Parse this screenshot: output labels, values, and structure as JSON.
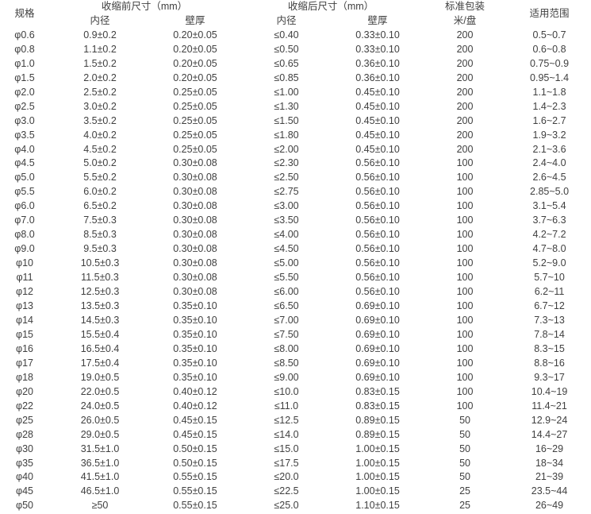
{
  "chart_data": {
    "type": "table",
    "header": {
      "spec": "规格",
      "pre_shrink_group": "收缩前尺寸（mm）",
      "post_shrink_group": "收缩后尺寸（mm）",
      "packaging_line1": "标准包装",
      "packaging_line2": "米/盘",
      "range": "适用范围",
      "inner_diameter": "内径",
      "wall_thickness": "壁厚"
    },
    "columns": [
      "规格",
      "收缩前尺寸内径",
      "收缩前尺寸壁厚",
      "收缩后尺寸内径",
      "收缩后尺寸壁厚",
      "标准包装米/盘",
      "适用范围"
    ],
    "rows": [
      [
        "φ0.6",
        "0.9±0.2",
        "0.20±0.05",
        "≤0.40",
        "0.33±0.10",
        "200",
        "0.5~0.7"
      ],
      [
        "φ0.8",
        "1.1±0.2",
        "0.20±0.05",
        "≤0.50",
        "0.33±0.10",
        "200",
        "0.6~0.8"
      ],
      [
        "φ1.0",
        "1.5±0.2",
        "0.20±0.05",
        "≤0.65",
        "0.36±0.10",
        "200",
        "0.75~0.9"
      ],
      [
        "φ1.5",
        "2.0±0.2",
        "0.20±0.05",
        "≤0.85",
        "0.36±0.10",
        "200",
        "0.95~1.4"
      ],
      [
        "φ2.0",
        "2.5±0.2",
        "0.25±0.05",
        "≤1.00",
        "0.45±0.10",
        "200",
        "1.1~1.8"
      ],
      [
        "φ2.5",
        "3.0±0.2",
        "0.25±0.05",
        "≤1.30",
        "0.45±0.10",
        "200",
        "1.4~2.3"
      ],
      [
        "φ3.0",
        "3.5±0.2",
        "0.25±0.05",
        "≤1.50",
        "0.45±0.10",
        "200",
        "1.6~2.7"
      ],
      [
        "φ3.5",
        "4.0±0.2",
        "0.25±0.05",
        "≤1.80",
        "0.45±0.10",
        "200",
        "1.9~3.2"
      ],
      [
        "φ4.0",
        "4.5±0.2",
        "0.25±0.05",
        "≤2.00",
        "0.45±0.10",
        "200",
        "2.1~3.6"
      ],
      [
        "φ4.5",
        "5.0±0.2",
        "0.30±0.08",
        "≤2.30",
        "0.56±0.10",
        "100",
        "2.4~4.0"
      ],
      [
        "φ5.0",
        "5.5±0.2",
        "0.30±0.08",
        "≤2.50",
        "0.56±0.10",
        "100",
        "2.6~4.5"
      ],
      [
        "φ5.5",
        "6.0±0.2",
        "0.30±0.08",
        "≤2.75",
        "0.56±0.10",
        "100",
        "2.85~5.0"
      ],
      [
        "φ6.0",
        "6.5±0.2",
        "0.30±0.08",
        "≤3.00",
        "0.56±0.10",
        "100",
        "3.1~5.4"
      ],
      [
        "φ7.0",
        "7.5±0.3",
        "0.30±0.08",
        "≤3.50",
        "0.56±0.10",
        "100",
        "3.7~6.3"
      ],
      [
        "φ8.0",
        "8.5±0.3",
        "0.30±0.08",
        "≤4.00",
        "0.56±0.10",
        "100",
        "4.2~7.2"
      ],
      [
        "φ9.0",
        "9.5±0.3",
        "0.30±0.08",
        "≤4.50",
        "0.56±0.10",
        "100",
        "4.7~8.0"
      ],
      [
        "φ10",
        "10.5±0.3",
        "0.30±0.08",
        "≤5.00",
        "0.56±0.10",
        "100",
        "5.2~9.0"
      ],
      [
        "φ11",
        "11.5±0.3",
        "0.30±0.08",
        "≤5.50",
        "0.56±0.10",
        "100",
        "5.7~10"
      ],
      [
        "φ12",
        "12.5±0.3",
        "0.30±0.08",
        "≤6.00",
        "0.56±0.10",
        "100",
        "6.2~11"
      ],
      [
        "φ13",
        "13.5±0.3",
        "0.35±0.10",
        "≤6.50",
        "0.69±0.10",
        "100",
        "6.7~12"
      ],
      [
        "φ14",
        "14.5±0.3",
        "0.35±0.10",
        "≤7.00",
        "0.69±0.10",
        "100",
        "7.3~13"
      ],
      [
        "φ15",
        "15.5±0.4",
        "0.35±0.10",
        "≤7.50",
        "0.69±0.10",
        "100",
        "7.8~14"
      ],
      [
        "φ16",
        "16.5±0.4",
        "0.35±0.10",
        "≤8.00",
        "0.69±0.10",
        "100",
        "8.3~15"
      ],
      [
        "φ17",
        "17.5±0.4",
        "0.35±0.10",
        "≤8.50",
        "0.69±0.10",
        "100",
        "8.8~16"
      ],
      [
        "φ18",
        "19.0±0.5",
        "0.35±0.10",
        "≤9.00",
        "0.69±0.10",
        "100",
        "9.3~17"
      ],
      [
        "φ20",
        "22.0±0.5",
        "0.40±0.12",
        "≤10.0",
        "0.83±0.15",
        "100",
        "10.4~19"
      ],
      [
        "φ22",
        "24.0±0.5",
        "0.40±0.12",
        "≤11.0",
        "0.83±0.15",
        "100",
        "11.4~21"
      ],
      [
        "φ25",
        "26.0±0.5",
        "0.45±0.15",
        "≤12.5",
        "0.89±0.15",
        "50",
        "12.9~24"
      ],
      [
        "φ28",
        "29.0±0.5",
        "0.45±0.15",
        "≤14.0",
        "0.89±0.15",
        "50",
        "14.4~27"
      ],
      [
        "φ30",
        "31.5±1.0",
        "0.50±0.15",
        "≤15.0",
        "1.00±0.15",
        "50",
        "16~29"
      ],
      [
        "φ35",
        "36.5±1.0",
        "0.50±0.15",
        "≤17.5",
        "1.00±0.15",
        "50",
        "18~34"
      ],
      [
        "φ40",
        "41.5±1.0",
        "0.55±0.15",
        "≤20.0",
        "1.00±0.15",
        "50",
        "21~39"
      ],
      [
        "φ45",
        "46.5±1.0",
        "0.55±0.15",
        "≤22.5",
        "1.00±0.15",
        "25",
        "23.5~44"
      ],
      [
        "φ50",
        "≥50",
        "0.55±0.15",
        "≤25.0",
        "1.10±0.15",
        "25",
        "26~49"
      ]
    ],
    "layout": {
      "text_color": "#404040",
      "background_color": "#ffffff",
      "gridlines": "none"
    }
  }
}
